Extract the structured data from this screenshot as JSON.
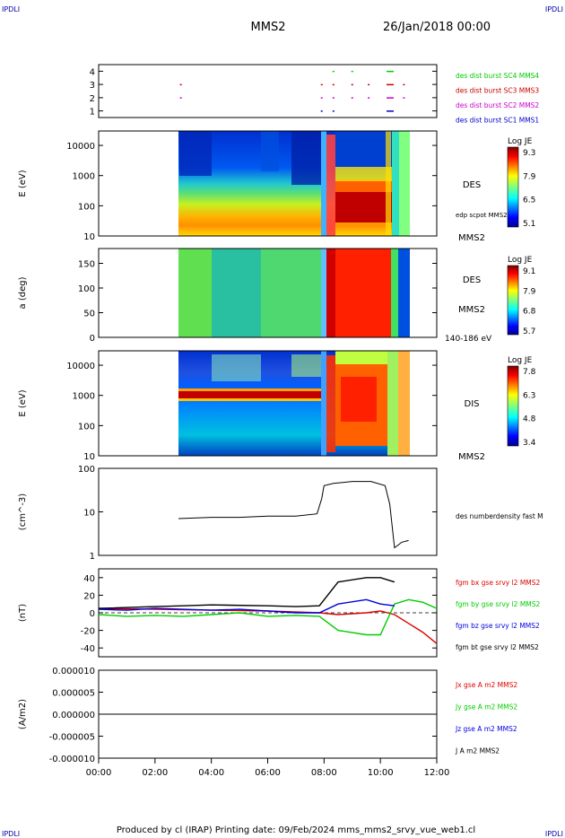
{
  "header": {
    "corner_tl": "IPDLI",
    "corner_tr": "IPDLI",
    "corner_bl": "IPDLI",
    "corner_br": "IPDLI",
    "title": "MMS2",
    "date": "26/Jan/2018 00:00"
  },
  "footer": {
    "text": "Produced by cl (IRAP)   Printing date: 09/Feb/2024   mms_mms2_srvy_vue_web1.cl"
  },
  "colors": {
    "sc1": "#0000cc",
    "sc2": "#cc00cc",
    "sc3": "#cc0000",
    "sc4": "#00cc00",
    "bx": "#dd0000",
    "by": "#00cc00",
    "bz": "#0000dd",
    "bt": "#000000"
  },
  "chart_data": [
    {
      "id": "burst",
      "type": "scatter",
      "ylabel": "",
      "yticks": [
        "1",
        "2",
        "3",
        "4"
      ],
      "ylim": [
        0.5,
        4.5
      ],
      "series": [
        {
          "name": "des dist burst SC1 MMS1",
          "y": 1,
          "x": [
            "07:55",
            "08:20",
            "10:15"
          ]
        },
        {
          "name": "des dist burst SC2 MMS2",
          "y": 2,
          "x": [
            "02:55",
            "07:55",
            "08:20",
            "09:00",
            "09:35",
            "10:15",
            "10:50"
          ]
        },
        {
          "name": "des dist burst SC3 MMS3",
          "y": 3,
          "x": [
            "02:55",
            "07:55",
            "08:20",
            "09:00",
            "09:35",
            "10:15",
            "10:50"
          ]
        },
        {
          "name": "des dist burst SC4 MMS4",
          "y": 4,
          "x": [
            "08:20",
            "09:00",
            "10:15"
          ]
        }
      ]
    },
    {
      "id": "des_energy",
      "type": "heatmap",
      "ylabel": "E (eV)",
      "yticks": [
        "10",
        "100",
        "1000",
        "10000"
      ],
      "ylim": [
        10,
        30000
      ],
      "label": "DES",
      "overlay_label": "edp scpot MMS2",
      "spacecraft": "MMS2",
      "colorbar": {
        "title": "Log JE",
        "ticks": [
          "9.3",
          "7.9",
          "6.5",
          "5.1"
        ]
      }
    },
    {
      "id": "des_pitch",
      "type": "heatmap",
      "ylabel": "a (deg)",
      "yticks": [
        "0",
        "50",
        "100",
        "150"
      ],
      "ylim": [
        0,
        180
      ],
      "label": "DES",
      "spacecraft": "MMS2",
      "energy_range": "140-186 eV",
      "colorbar": {
        "title": "Log JE",
        "ticks": [
          "9.1",
          "7.9",
          "6.8",
          "5.7"
        ]
      }
    },
    {
      "id": "dis_energy",
      "type": "heatmap",
      "ylabel": "E (eV)",
      "yticks": [
        "10",
        "100",
        "1000",
        "10000"
      ],
      "ylim": [
        10,
        30000
      ],
      "label": "DIS",
      "spacecraft": "MMS2",
      "colorbar": {
        "title": "Log JE",
        "ticks": [
          "7.8",
          "6.3",
          "4.8",
          "3.4"
        ]
      }
    },
    {
      "id": "density",
      "type": "line",
      "ylabel": "(cm^-3)",
      "yticks": [
        "1",
        "10",
        "100"
      ],
      "ylim": [
        1,
        100
      ],
      "series": [
        {
          "name": "des numberdensity fast M",
          "x": [
            "02:50",
            "04:00",
            "05:00",
            "06:00",
            "07:00",
            "07:45",
            "07:55",
            "08:00",
            "08:20",
            "09:00",
            "09:40",
            "10:10",
            "10:20",
            "10:30",
            "10:40",
            "10:45",
            "11:00"
          ],
          "y": [
            7,
            7.5,
            7.5,
            8,
            8,
            9,
            20,
            40,
            45,
            50,
            50,
            40,
            15,
            1.5,
            1.8,
            2,
            2.2
          ]
        }
      ]
    },
    {
      "id": "magnetic_field",
      "type": "line",
      "ylabel": "(nT)",
      "yticks": [
        "-40",
        "-20",
        "0",
        "20",
        "40"
      ],
      "ylim": [
        -50,
        50
      ],
      "series": [
        {
          "name": "fgm bx gse srvy l2 MMS2",
          "color_key": "bx",
          "x": [
            "00:00",
            "02:00",
            "04:00",
            "06:00",
            "07:50",
            "08:30",
            "09:30",
            "10:00",
            "10:30",
            "11:00",
            "11:30",
            "12:00"
          ],
          "y": [
            5,
            4,
            3,
            2,
            0,
            -2,
            0,
            2,
            -2,
            -12,
            -22,
            -35
          ]
        },
        {
          "name": "fgm by gse srvy l2 MMS2",
          "color_key": "by",
          "x": [
            "00:00",
            "01:00",
            "02:00",
            "03:00",
            "04:00",
            "05:00",
            "06:00",
            "07:00",
            "07:50",
            "08:30",
            "09:30",
            "10:00",
            "10:30",
            "11:00",
            "11:30",
            "12:00"
          ],
          "y": [
            -2,
            -4,
            -3,
            -4,
            -2,
            0,
            -4,
            -3,
            -4,
            -20,
            -25,
            -25,
            10,
            15,
            12,
            5
          ]
        },
        {
          "name": "fgm bz gse srvy l2 MMS2",
          "color_key": "bz",
          "x": [
            "00:00",
            "01:00",
            "02:00",
            "03:00",
            "04:00",
            "05:00",
            "06:00",
            "07:00",
            "07:50",
            "08:30",
            "09:30",
            "10:00",
            "10:30"
          ],
          "y": [
            4,
            3,
            5,
            4,
            3,
            4,
            2,
            0,
            0,
            10,
            15,
            10,
            8
          ]
        },
        {
          "name": "fgm bt gse srvy l2 MMS2",
          "color_key": "bt",
          "x": [
            "00:00",
            "02:00",
            "03:00",
            "04:00",
            "06:00",
            "07:00",
            "07:50",
            "08:30",
            "09:30",
            "10:00",
            "10:30"
          ],
          "y": [
            5,
            7,
            8,
            9,
            8,
            7,
            8,
            35,
            40,
            40,
            35
          ]
        }
      ]
    },
    {
      "id": "current_density",
      "type": "line",
      "ylabel": "(A/m2)",
      "yticks": [
        "-0.000010",
        "-0.000005",
        "0.000000",
        "0.000005",
        "0.000010"
      ],
      "ylim": [
        -1e-05,
        1e-05
      ],
      "series": [
        {
          "name": "Jx gse A m2 MMS2",
          "color_key": "bx"
        },
        {
          "name": "Jy gse A m2 MMS2",
          "color_key": "by"
        },
        {
          "name": "Jz gse A m2 MMS2",
          "color_key": "bz"
        },
        {
          "name": "J A m2 MMS2",
          "color_key": "bt"
        }
      ]
    }
  ],
  "time_axis": {
    "ticks": [
      "00:00",
      "02:00",
      "04:00",
      "06:00",
      "08:00",
      "10:00",
      "12:00"
    ]
  }
}
